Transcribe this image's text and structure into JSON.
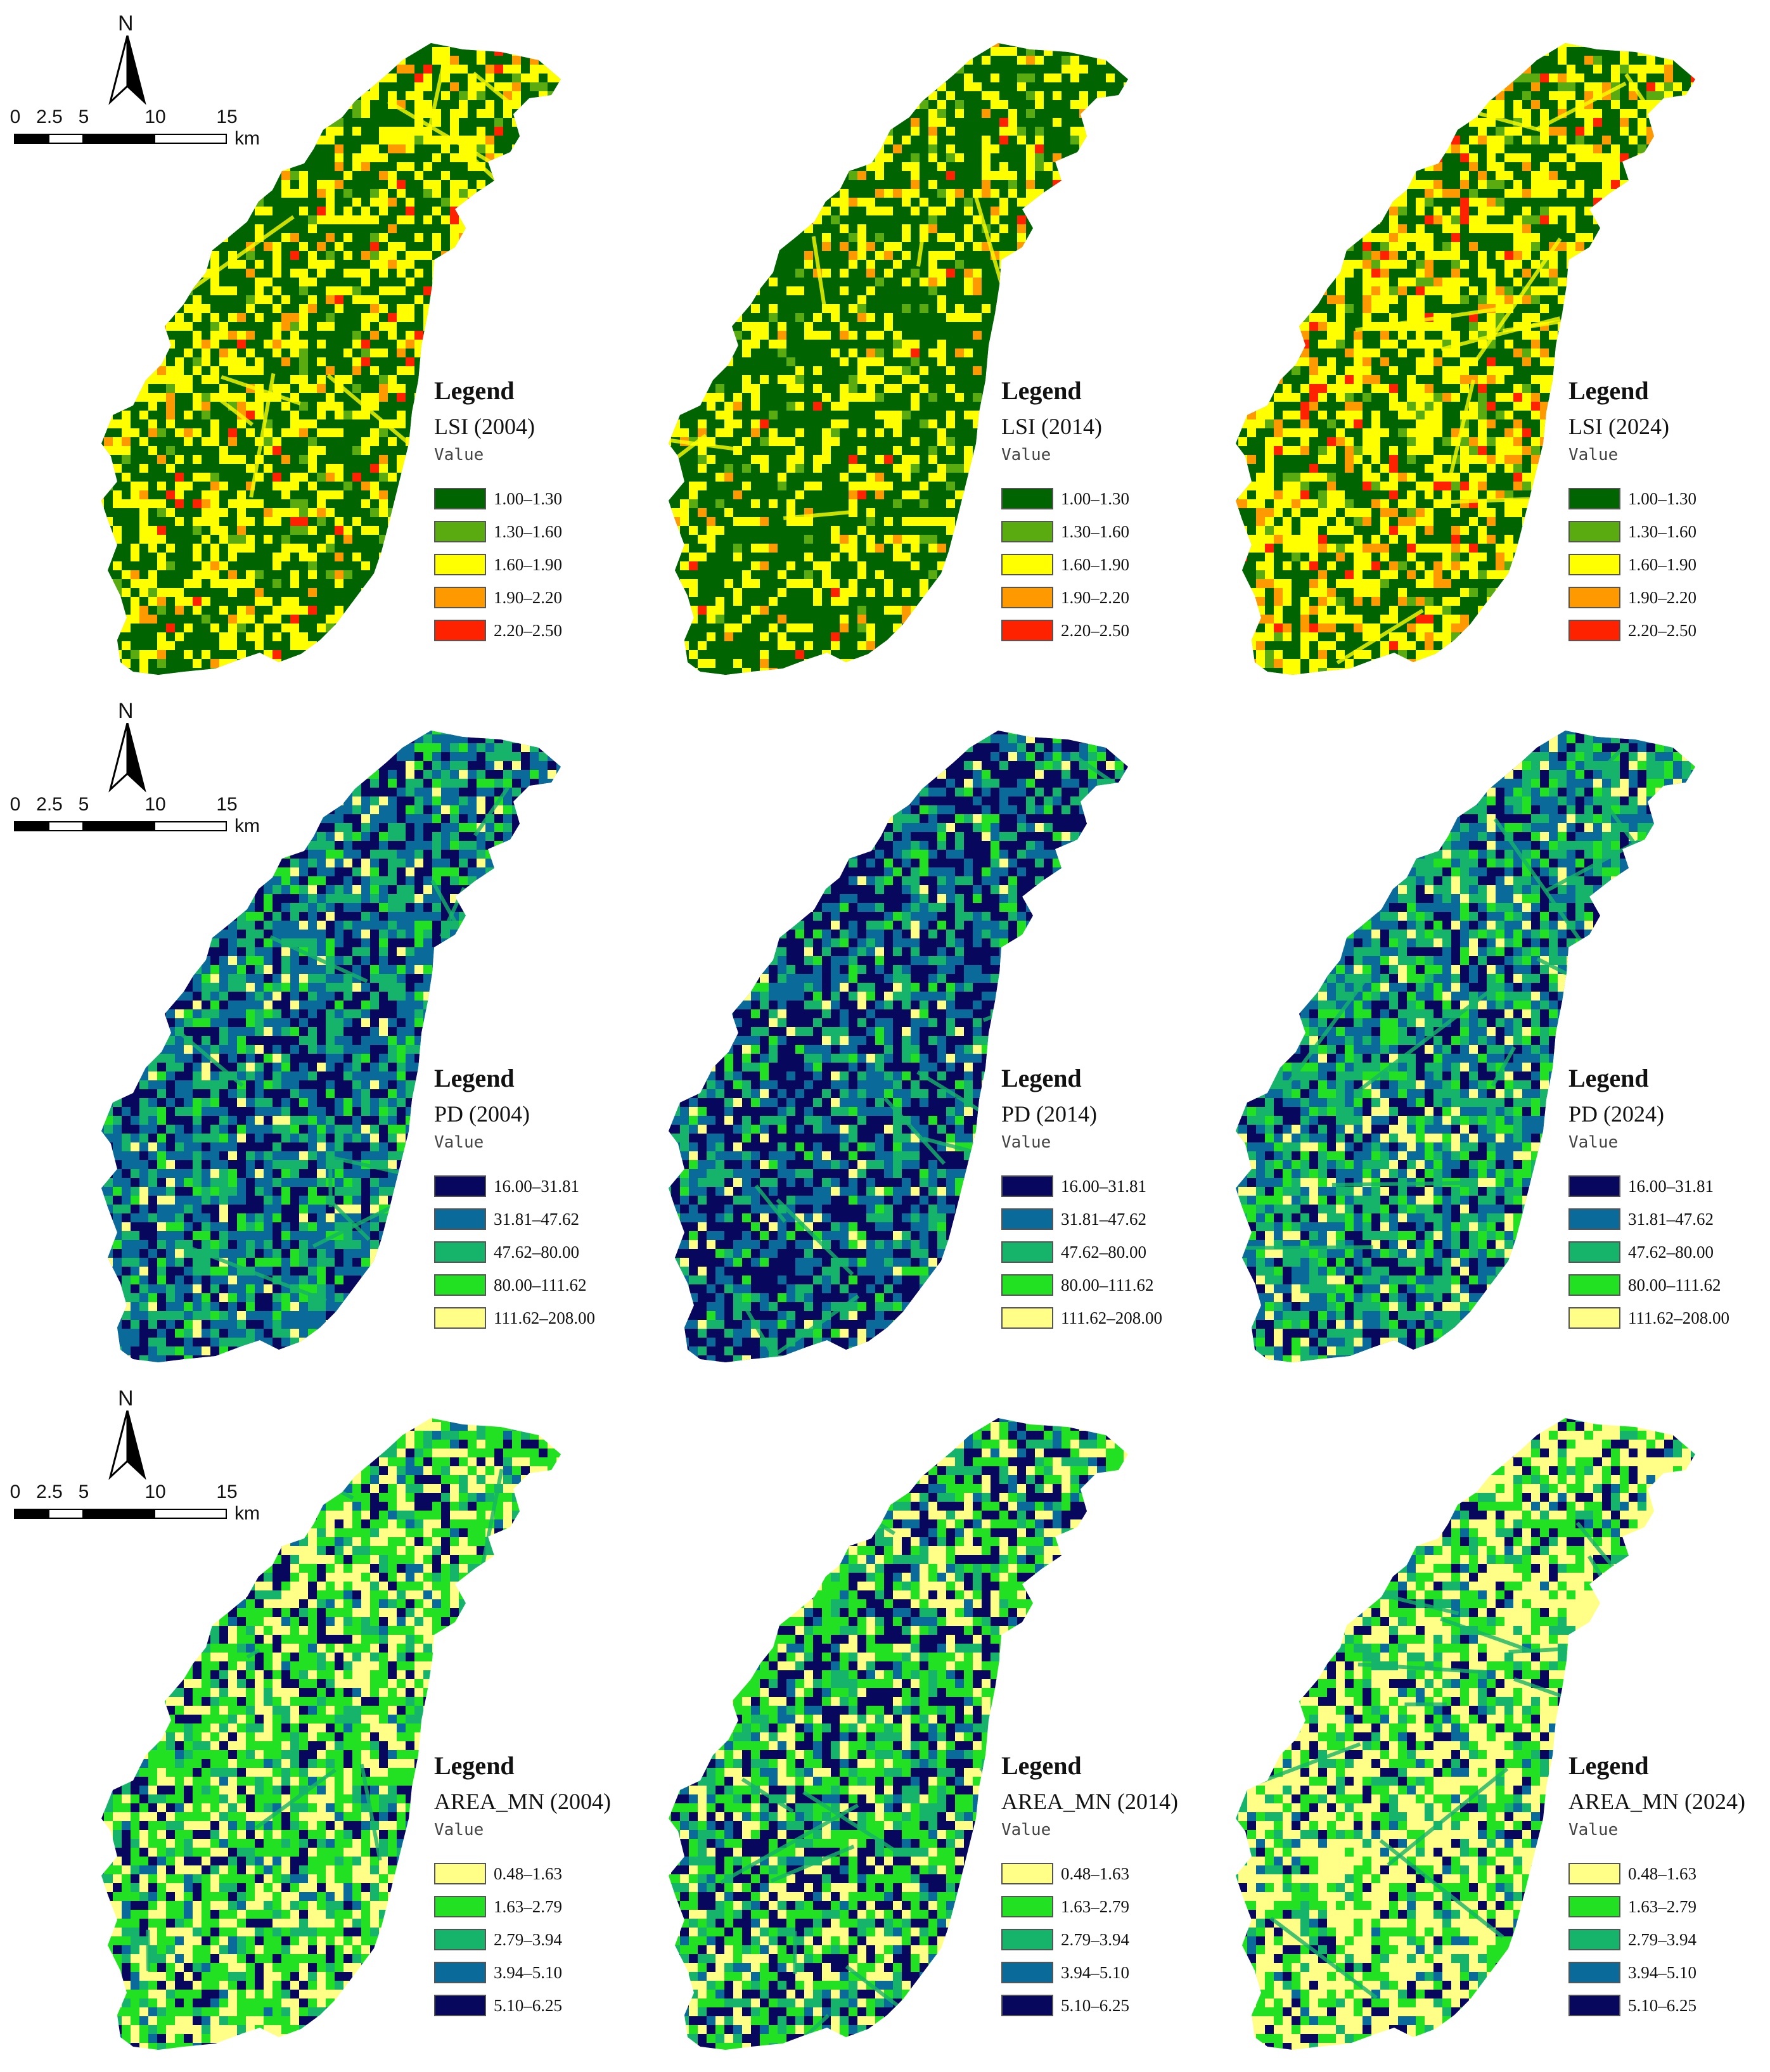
{
  "scale": {
    "ticks": [
      "0",
      "2.5",
      "5",
      "10",
      "15"
    ],
    "unit": "km"
  },
  "north_label": "N",
  "panels": [
    {
      "id": "lsi-2004",
      "heading": "Legend",
      "title": "LSI (2004)",
      "subtitle": "Value",
      "palette": [
        "#006400",
        "#5aab0f",
        "#ffff00",
        "#ff9900",
        "#ff2200"
      ],
      "items": [
        {
          "label": "1.00–1.30",
          "color": "#006400"
        },
        {
          "label": "1.30–1.60",
          "color": "#5aab0f"
        },
        {
          "label": "1.60–1.90",
          "color": "#ffff00"
        },
        {
          "label": "1.90–2.20",
          "color": "#ff9900"
        },
        {
          "label": "2.20–2.50",
          "color": "#ff2200"
        }
      ]
    },
    {
      "id": "lsi-2014",
      "heading": "Legend",
      "title": "LSI (2014)",
      "subtitle": "Value",
      "items": [
        {
          "label": "1.00–1.30",
          "color": "#006400"
        },
        {
          "label": "1.30–1.60",
          "color": "#5aab0f"
        },
        {
          "label": "1.60–1.90",
          "color": "#ffff00"
        },
        {
          "label": "1.90–2.20",
          "color": "#ff9900"
        },
        {
          "label": "2.20–2.50",
          "color": "#ff2200"
        }
      ]
    },
    {
      "id": "lsi-2024",
      "heading": "Legend",
      "title": "LSI (2024)",
      "subtitle": "Value",
      "items": [
        {
          "label": "1.00–1.30",
          "color": "#006400"
        },
        {
          "label": "1.30–1.60",
          "color": "#5aab0f"
        },
        {
          "label": "1.60–1.90",
          "color": "#ffff00"
        },
        {
          "label": "1.90–2.20",
          "color": "#ff9900"
        },
        {
          "label": "2.20–2.50",
          "color": "#ff2200"
        }
      ]
    },
    {
      "id": "pd-2004",
      "heading": "Legend",
      "title": "PD (2004)",
      "subtitle": "Value",
      "items": [
        {
          "label": "16.00–31.81",
          "color": "#07075e"
        },
        {
          "label": "31.81–47.62",
          "color": "#0a6b9a"
        },
        {
          "label": "47.62–80.00",
          "color": "#16b46a"
        },
        {
          "label": "80.00–111.62",
          "color": "#22e022"
        },
        {
          "label": "111.62–208.00",
          "color": "#ffff88"
        }
      ]
    },
    {
      "id": "pd-2014",
      "heading": "Legend",
      "title": "PD (2014)",
      "subtitle": "Value",
      "items": [
        {
          "label": "16.00–31.81",
          "color": "#07075e"
        },
        {
          "label": "31.81–47.62",
          "color": "#0a6b9a"
        },
        {
          "label": "47.62–80.00",
          "color": "#16b46a"
        },
        {
          "label": "80.00–111.62",
          "color": "#22e022"
        },
        {
          "label": "111.62–208.00",
          "color": "#ffff88"
        }
      ]
    },
    {
      "id": "pd-2024",
      "heading": "Legend",
      "title": "PD (2024)",
      "subtitle": "Value",
      "items": [
        {
          "label": "16.00–31.81",
          "color": "#07075e"
        },
        {
          "label": "31.81–47.62",
          "color": "#0a6b9a"
        },
        {
          "label": "47.62–80.00",
          "color": "#16b46a"
        },
        {
          "label": "80.00–111.62",
          "color": "#22e022"
        },
        {
          "label": "111.62–208.00",
          "color": "#ffff88"
        }
      ]
    },
    {
      "id": "area-2004",
      "heading": "Legend",
      "title": "AREA_MN (2004)",
      "subtitle": "Value",
      "items": [
        {
          "label": "0.48–1.63",
          "color": "#ffff88"
        },
        {
          "label": "1.63–2.79",
          "color": "#22e022"
        },
        {
          "label": "2.79–3.94",
          "color": "#16b46a"
        },
        {
          "label": "3.94–5.10",
          "color": "#0a6b9a"
        },
        {
          "label": "5.10–6.25",
          "color": "#07075e"
        }
      ]
    },
    {
      "id": "area-2014",
      "heading": "Legend",
      "title": "AREA_MN (2014)",
      "subtitle": "Value",
      "items": [
        {
          "label": "0.48–1.63",
          "color": "#ffff88"
        },
        {
          "label": "1.63–2.79",
          "color": "#22e022"
        },
        {
          "label": "2.79–3.94",
          "color": "#16b46a"
        },
        {
          "label": "3.94–5.10",
          "color": "#0a6b9a"
        },
        {
          "label": "5.10–6.25",
          "color": "#07075e"
        }
      ]
    },
    {
      "id": "area-2024",
      "heading": "Legend",
      "title": "AREA_MN (2024)",
      "subtitle": "Value",
      "items": [
        {
          "label": "0.48–1.63",
          "color": "#ffff88"
        },
        {
          "label": "1.63–2.79",
          "color": "#22e022"
        },
        {
          "label": "2.79–3.94",
          "color": "#16b46a"
        },
        {
          "label": "3.94–5.10",
          "color": "#0a6b9a"
        },
        {
          "label": "5.10–6.25",
          "color": "#07075e"
        }
      ]
    }
  ]
}
